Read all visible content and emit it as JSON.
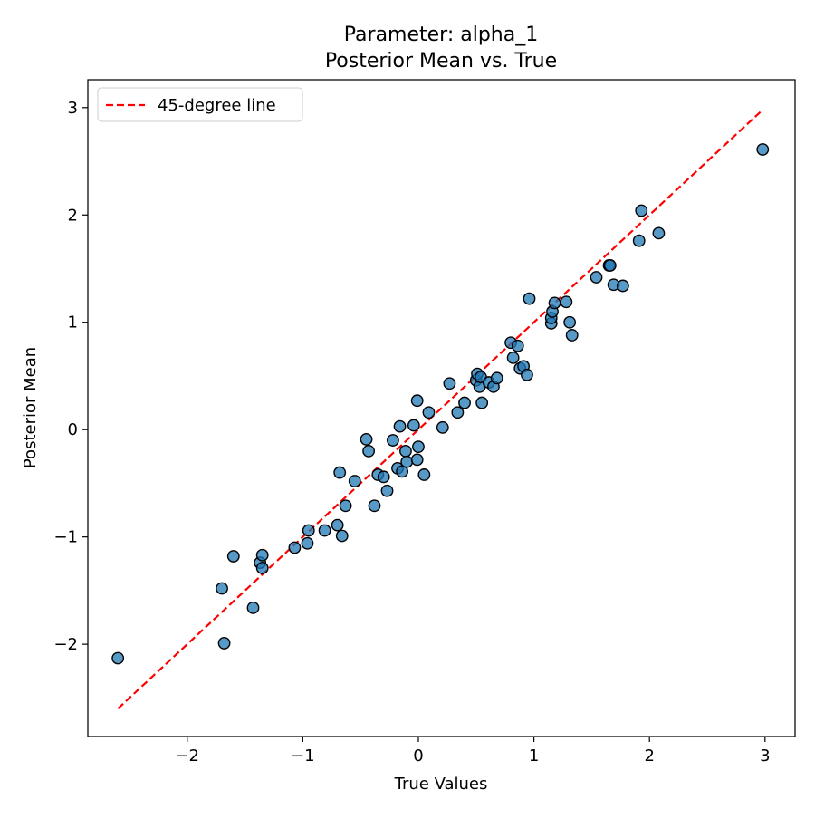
{
  "chart_data": {
    "type": "scatter",
    "title_line1": "Parameter: alpha_1",
    "title_line2": "Posterior Mean vs. True",
    "xlabel": "True Values",
    "ylabel": "Posterior Mean",
    "xlim": [
      -2.86,
      3.26
    ],
    "ylim": [
      -2.86,
      3.26
    ],
    "xticks": [
      -2,
      -1,
      0,
      1,
      2,
      3
    ],
    "yticks": [
      -2,
      -1,
      0,
      1,
      2,
      3
    ],
    "xtick_labels": [
      "−2",
      "−1",
      "0",
      "1",
      "2",
      "3"
    ],
    "ytick_labels": [
      "−2",
      "−1",
      "0",
      "1",
      "2",
      "3"
    ],
    "grid": false,
    "legend_position": "upper-left",
    "legend": [
      {
        "label": "45-degree line",
        "style": "dashed",
        "color": "#ff0000"
      }
    ],
    "reference_line": {
      "name": "45-degree line",
      "from": [
        -2.6,
        -2.6
      ],
      "to": [
        2.98,
        2.98
      ],
      "color": "#ff0000"
    },
    "point_color": "#1f77b4",
    "point_edge_color": "#000000",
    "points": [
      [
        -2.6,
        -2.13
      ],
      [
        -1.7,
        -1.48
      ],
      [
        -1.68,
        -1.99
      ],
      [
        -1.6,
        -1.18
      ],
      [
        -1.43,
        -1.66
      ],
      [
        -1.37,
        -1.24
      ],
      [
        -1.35,
        -1.17
      ],
      [
        -1.35,
        -1.29
      ],
      [
        -1.07,
        -1.1
      ],
      [
        -0.96,
        -1.06
      ],
      [
        -0.95,
        -0.94
      ],
      [
        -0.81,
        -0.94
      ],
      [
        -0.7,
        -0.89
      ],
      [
        -0.68,
        -0.4
      ],
      [
        -0.66,
        -0.99
      ],
      [
        -0.63,
        -0.71
      ],
      [
        -0.55,
        -0.48
      ],
      [
        -0.45,
        -0.09
      ],
      [
        -0.43,
        -0.2
      ],
      [
        -0.38,
        -0.71
      ],
      [
        -0.35,
        -0.42
      ],
      [
        -0.3,
        -0.44
      ],
      [
        -0.27,
        -0.57
      ],
      [
        -0.22,
        -0.1
      ],
      [
        -0.18,
        -0.36
      ],
      [
        -0.16,
        0.03
      ],
      [
        -0.14,
        -0.39
      ],
      [
        -0.11,
        -0.2
      ],
      [
        -0.1,
        -0.3
      ],
      [
        -0.04,
        0.04
      ],
      [
        -0.01,
        0.27
      ],
      [
        -0.01,
        -0.28
      ],
      [
        0.0,
        -0.16
      ],
      [
        0.05,
        -0.42
      ],
      [
        0.09,
        0.16
      ],
      [
        0.21,
        0.02
      ],
      [
        0.27,
        0.43
      ],
      [
        0.34,
        0.16
      ],
      [
        0.4,
        0.25
      ],
      [
        0.5,
        0.46
      ],
      [
        0.51,
        0.52
      ],
      [
        0.53,
        0.4
      ],
      [
        0.54,
        0.49
      ],
      [
        0.55,
        0.25
      ],
      [
        0.61,
        0.44
      ],
      [
        0.65,
        0.4
      ],
      [
        0.68,
        0.48
      ],
      [
        0.8,
        0.81
      ],
      [
        0.82,
        0.67
      ],
      [
        0.86,
        0.78
      ],
      [
        0.88,
        0.57
      ],
      [
        0.91,
        0.59
      ],
      [
        0.94,
        0.51
      ],
      [
        0.96,
        1.22
      ],
      [
        1.15,
        0.99
      ],
      [
        1.15,
        1.04
      ],
      [
        1.16,
        1.1
      ],
      [
        1.18,
        1.18
      ],
      [
        1.28,
        1.19
      ],
      [
        1.31,
        1.0
      ],
      [
        1.33,
        0.88
      ],
      [
        1.54,
        1.42
      ],
      [
        1.65,
        1.53
      ],
      [
        1.66,
        1.53
      ],
      [
        1.69,
        1.35
      ],
      [
        1.77,
        1.34
      ],
      [
        1.91,
        1.76
      ],
      [
        1.93,
        2.04
      ],
      [
        2.08,
        1.83
      ],
      [
        2.98,
        2.61
      ]
    ]
  }
}
